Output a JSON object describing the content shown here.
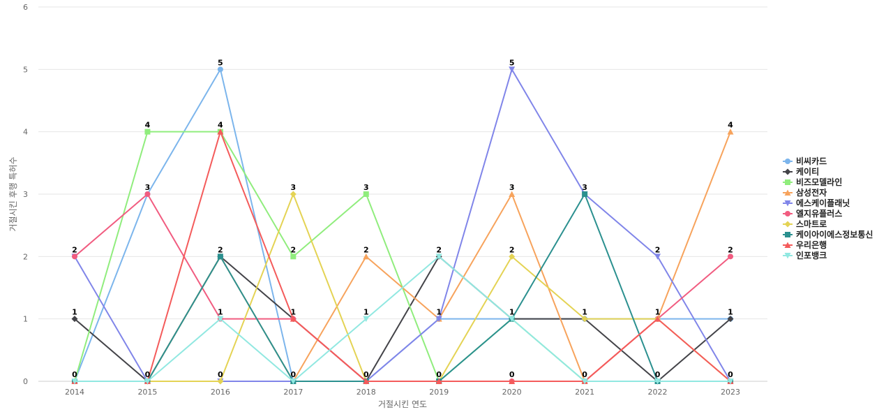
{
  "chart_data": {
    "type": "line",
    "title": "",
    "xlabel": "거절시킨 연도",
    "ylabel": "거절시킨 후행 특허수",
    "categories": [
      "2014",
      "2015",
      "2016",
      "2017",
      "2018",
      "2019",
      "2020",
      "2021",
      "2022",
      "2023"
    ],
    "ylim": [
      0,
      6
    ],
    "yticks": [
      0,
      1,
      2,
      3,
      4,
      5,
      6
    ],
    "grid": true,
    "legend_position": "right",
    "series": [
      {
        "name": "비씨카드",
        "color": "#7cb5ec",
        "marker": "circle",
        "values": [
          0,
          3,
          5,
          0,
          0,
          1,
          1,
          1,
          1,
          1
        ]
      },
      {
        "name": "케이티",
        "color": "#434348",
        "marker": "diamond",
        "values": [
          1,
          0,
          2,
          1,
          0,
          2,
          1,
          1,
          0,
          1
        ]
      },
      {
        "name": "비즈모델라인",
        "color": "#90ed7d",
        "marker": "square",
        "values": [
          0,
          4,
          4,
          2,
          3,
          0,
          1,
          0,
          0,
          0
        ]
      },
      {
        "name": "삼성전자",
        "color": "#f7a35c",
        "marker": "triangle",
        "values": [
          0,
          0,
          2,
          0,
          2,
          1,
          3,
          0,
          1,
          4
        ]
      },
      {
        "name": "에스케이플래닛",
        "color": "#8085e9",
        "marker": "triangle-down",
        "values": [
          2,
          0,
          0,
          0,
          0,
          1,
          5,
          3,
          2,
          0
        ]
      },
      {
        "name": "엘지유플러스",
        "color": "#f15c80",
        "marker": "circle",
        "values": [
          2,
          3,
          1,
          1,
          0,
          0,
          0,
          0,
          1,
          2
        ]
      },
      {
        "name": "스마트로",
        "color": "#e4d354",
        "marker": "diamond",
        "values": [
          0,
          0,
          0,
          3,
          0,
          0,
          2,
          1,
          1,
          0
        ]
      },
      {
        "name": "케이아이에스정보통신",
        "color": "#2b908f",
        "marker": "square",
        "values": [
          0,
          0,
          2,
          0,
          0,
          0,
          1,
          3,
          0,
          0
        ]
      },
      {
        "name": "우리은행",
        "color": "#f45b5b",
        "marker": "triangle",
        "values": [
          0,
          0,
          4,
          1,
          0,
          0,
          0,
          0,
          1,
          0
        ]
      },
      {
        "name": "인포뱅크",
        "color": "#91e8e1",
        "marker": "triangle-down",
        "values": [
          0,
          0,
          1,
          0,
          1,
          2,
          1,
          0,
          0,
          0
        ]
      }
    ],
    "data_labels": {
      "2014": 2,
      "2015": 4,
      "2016": 5,
      "2017": 3,
      "2018": 3,
      "2019": 2,
      "2020": 5,
      "2021": 3,
      "2022": 2,
      "2023": 4
    },
    "data_label_sets": [
      [
        2,
        1,
        0
      ],
      [
        4,
        3,
        0
      ],
      [
        5,
        4,
        2,
        1,
        0
      ],
      [
        3,
        2,
        1,
        0
      ],
      [
        3,
        2,
        1,
        0
      ],
      [
        2,
        1,
        0
      ],
      [
        5,
        3,
        2,
        1,
        0
      ],
      [
        3,
        1,
        0
      ],
      [
        2,
        1,
        0
      ],
      [
        4,
        2,
        1,
        0
      ]
    ]
  }
}
